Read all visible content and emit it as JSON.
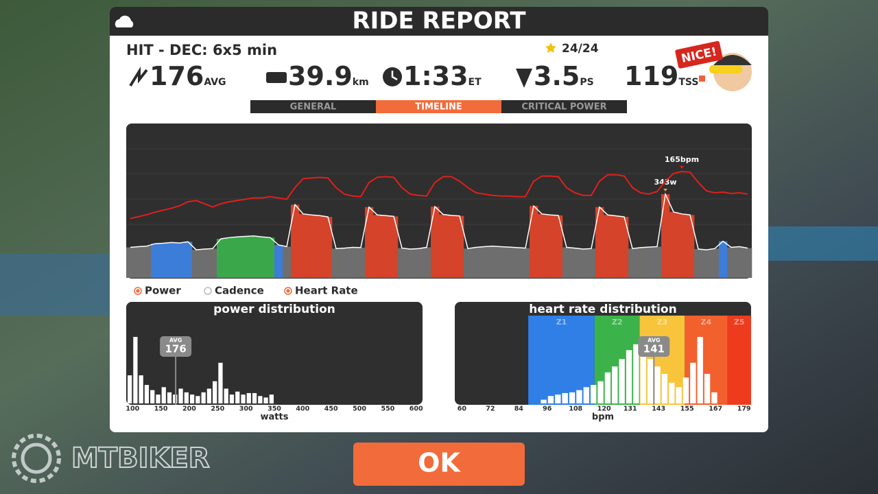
{
  "header": {
    "title": "RIDE REPORT"
  },
  "workout": {
    "name": "HIT - DEC: 6x5 min",
    "stars": "24/24",
    "badge": "NICE!"
  },
  "stats": [
    {
      "value": 176,
      "unit": "AVG"
    },
    {
      "value": 39.9,
      "unit": "km"
    },
    {
      "value": "1:33",
      "unit": "ET"
    },
    {
      "value": 3.5,
      "unit": "PS"
    },
    {
      "value": 119,
      "unit": "TSS"
    }
  ],
  "tabs": {
    "items": [
      "GENERAL",
      "TIMELINE",
      "CRITICAL POWER"
    ],
    "active": 1
  },
  "chart_data": [
    {
      "type": "line",
      "legend": [
        {
          "label": "Power",
          "checked": true
        },
        {
          "label": "Cadence",
          "checked": false
        },
        {
          "label": "Heart Rate",
          "checked": true
        }
      ],
      "zone_colors": [
        "#6e6e6e",
        "#3b7dd8",
        "#3aa84a",
        "#d4432a"
      ],
      "series": [
        {
          "color": "#ffffff",
          "peak_label": "343w",
          "values": [
            125,
            128,
            130,
            140,
            142,
            145,
            143,
            148,
            115,
            118,
            120,
            160,
            165,
            168,
            170,
            172,
            168,
            165,
            135,
            128,
            300,
            262,
            258,
            255,
            250,
            120,
            122,
            125,
            124,
            290,
            258,
            255,
            252,
            122,
            118,
            120,
            125,
            292,
            260,
            256,
            254,
            120,
            125,
            128,
            130,
            128,
            126,
            124,
            122,
            295,
            262,
            258,
            256,
            125,
            122,
            118,
            120,
            290,
            258,
            254,
            250,
            120,
            124,
            126,
            128,
            343,
            270,
            262,
            258,
            118,
            115,
            120,
            150,
            125,
            128,
            122
          ],
          "zones": [
            0,
            0,
            0,
            1,
            1,
            1,
            1,
            1,
            0,
            0,
            0,
            2,
            2,
            2,
            2,
            2,
            2,
            2,
            1,
            0,
            3,
            3,
            3,
            3,
            3,
            0,
            0,
            0,
            0,
            3,
            3,
            3,
            3,
            0,
            0,
            0,
            0,
            3,
            3,
            3,
            3,
            0,
            0,
            0,
            0,
            0,
            0,
            0,
            0,
            3,
            3,
            3,
            3,
            0,
            0,
            0,
            0,
            3,
            3,
            3,
            3,
            0,
            0,
            0,
            0,
            3,
            3,
            3,
            3,
            0,
            0,
            0,
            1,
            0,
            0,
            0
          ]
        },
        {
          "color": "#e0201b",
          "peak_label": "165bpm",
          "values": [
            92,
            95,
            98,
            102,
            105,
            108,
            112,
            118,
            120,
            115,
            110,
            115,
            118,
            120,
            122,
            124,
            124,
            126,
            124,
            122,
            140,
            154,
            155,
            156,
            155,
            140,
            130,
            127,
            126,
            148,
            156,
            157,
            156,
            140,
            130,
            128,
            127,
            148,
            157,
            157,
            150,
            140,
            132,
            130,
            128,
            127,
            127,
            126,
            126,
            150,
            158,
            158,
            157,
            140,
            132,
            128,
            128,
            150,
            160,
            160,
            158,
            140,
            132,
            130,
            134,
            150,
            162,
            165,
            164,
            148,
            135,
            132,
            133,
            131,
            132,
            130
          ]
        }
      ]
    },
    {
      "type": "histogram",
      "title": "power distribution",
      "x_label": "watts",
      "color": "#ffffff",
      "bins": [
        90,
        100,
        110,
        120,
        130,
        140,
        150,
        160,
        170,
        180,
        190,
        200,
        210,
        220,
        230,
        240,
        250,
        260,
        270,
        280,
        290,
        300,
        310,
        320,
        330,
        340,
        350
      ],
      "counts": [
        38,
        90,
        38,
        25,
        18,
        12,
        22,
        15,
        12,
        20,
        15,
        12,
        10,
        15,
        20,
        30,
        55,
        20,
        12,
        16,
        12,
        14,
        14,
        10,
        8,
        12
      ],
      "xlim": [
        90,
        610
      ],
      "xticks": [
        100,
        150,
        200,
        250,
        300,
        350,
        400,
        450,
        500,
        550,
        600
      ],
      "avg": {
        "label": "AVG",
        "value": 176
      }
    },
    {
      "type": "histogram",
      "title": "heart rate distribution",
      "x_label": "bpm",
      "color": "#ffffff",
      "bins": [
        93,
        96,
        99,
        102,
        105,
        108,
        111,
        114,
        117,
        120,
        123,
        126,
        129,
        132,
        135,
        138,
        141,
        144,
        147,
        150,
        153,
        156,
        159,
        162,
        165,
        168
      ],
      "counts": [
        5,
        10,
        12,
        14,
        15,
        18,
        22,
        25,
        30,
        42,
        50,
        60,
        72,
        80,
        65,
        60,
        50,
        40,
        28,
        22,
        35,
        55,
        90,
        40,
        15
      ],
      "xlim": [
        57,
        182
      ],
      "xticks": [
        60,
        72,
        84,
        96,
        108,
        120,
        131,
        143,
        155,
        167,
        179
      ],
      "zones": [
        {
          "label": "Z1",
          "range": [
            88,
            116
          ],
          "color": "#2f7fe6"
        },
        {
          "label": "Z2",
          "range": [
            116,
            135
          ],
          "color": "#3cb34a"
        },
        {
          "label": "Z3",
          "range": [
            135,
            154
          ],
          "color": "#f7c43c"
        },
        {
          "label": "Z4",
          "range": [
            154,
            172
          ],
          "color": "#f2602e"
        },
        {
          "label": "Z5",
          "range": [
            172,
            182
          ],
          "color": "#ee3b1e"
        }
      ],
      "avg": {
        "label": "AVG",
        "value": 141
      }
    }
  ],
  "button": "OK",
  "watermark": "MTBIKER"
}
